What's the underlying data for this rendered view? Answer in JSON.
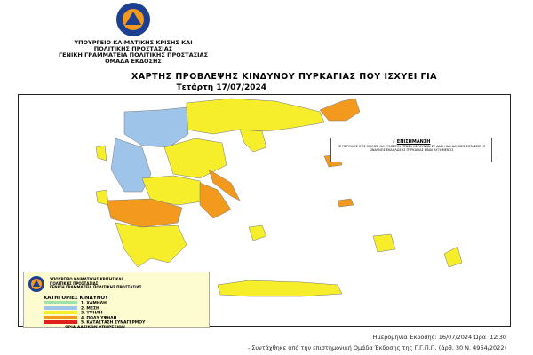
{
  "logo": {
    "text_top": "ΠΟΛΙΤΙΚΗ ΠΡΟΣΤΑΣΙΑ",
    "text_bottom": "ΕΛΛΑΔΑ"
  },
  "header": {
    "lines": [
      "ΥΠΟΥΡΓΕΙΟ  ΚΛΙΜΑΤΙΚΗΣ ΚΡΙΣΗΣ ΚΑΙ",
      "ΠΟΛΙΤΙΚΗΣ ΠΡΟΣΤΑΣΙΑΣ",
      "ΓΕΝΙΚΗ ΓΡΑΜΜΑΤΕΙΑ ΠΟΛΙΤΙΚΗΣ ΠΡΟΣΤΑΣΙΑΣ",
      "ΟΜΑΔΑ ΕΚΔΟΣΗΣ"
    ]
  },
  "title": "ΧΑΡΤΗΣ ΠΡΟΒΛΕΨΗΣ ΚΙΝΔΥΝΟΥ ΠΥΡΚΑΓΙΑΣ ΠΟΥ ΙΣΧΥΕΙ ΓΙΑ",
  "date": "Τετάρτη 17/07/2024",
  "note": {
    "heading": "ΕΠΙΣΗΜΑΝΣΗ",
    "text": "ΣΕ ΠΕΡΙΟΧΕΣ ΣΤΙΣ ΟΠΟΙΕΣ ΘΑ ΣΥΜΒΟΥΝ ΠΤΩΣΗ ΚΕΡΑΥΝΩΝ ΣΕ ΔΑΣΗ ΚΑΙ ΔΑΣΙΚΕΣ ΕΚΤΑΣΕΙΣ, Ο ΚΙΝΔΥΝΟΣ ΕΚΔΗΛΩΣΗΣ ΠΥΡΚΑΓΙΑΣ ΕΙΝΑΙ ΑΥΞΗΜΕΝΟΣ"
  },
  "legend": {
    "org_lines": [
      "ΥΠΟΥΡΓΕΙΟ  ΚΛΙΜΑΤΙΚΗΣ ΚΡΙΣΗΣ ΚΑΙ",
      "ΠΟΛΙΤΙΚΗΣ ΠΡΟΣΤΑΣΙΑΣ",
      "ΓΕΝΙΚΗ ΓΡΑΜΜΑΤΕΙΑ ΠΟΛΙΤΙΚΗΣ ΠΡΟΣΤΑΣΙΑΣ"
    ],
    "title": "ΚΑΤΗΓΟΡΙΕΣ ΚΙΝΔΥΝΟΥ",
    "categories": [
      {
        "label": "1. ΧΑΜΗΛΗ",
        "color": "#9be3a8"
      },
      {
        "label": "2. ΜΕΣΗ",
        "color": "#9fc4ea"
      },
      {
        "label": "3. ΥΨΗΛΗ",
        "color": "#f6ee2a"
      },
      {
        "label": "4. ΠΟΛΥ ΥΨΗΛΗ",
        "color": "#f39a1e"
      },
      {
        "label": "5. ΚΑΤΑΣΤΑΣΗ ΣΥΝΑΓΕΡΜΟΥ",
        "color": "#e0201b"
      }
    ],
    "boundary_label": "ΟΡΙΑ ΔΑΣΙΚΩΝ ΥΠΗΡΕΣΙΩΝ"
  },
  "footer": {
    "issue": "Ημερομηνία Έκδοσης: 16/07/2024  Ώρα :12:30",
    "credit": "- Συντάχθηκε από την επιστημονική  Ομάδα  Έκδοσης της Γ.Γ.Π.Π. (άρθ. 30 Ν. 4964/2022)"
  }
}
